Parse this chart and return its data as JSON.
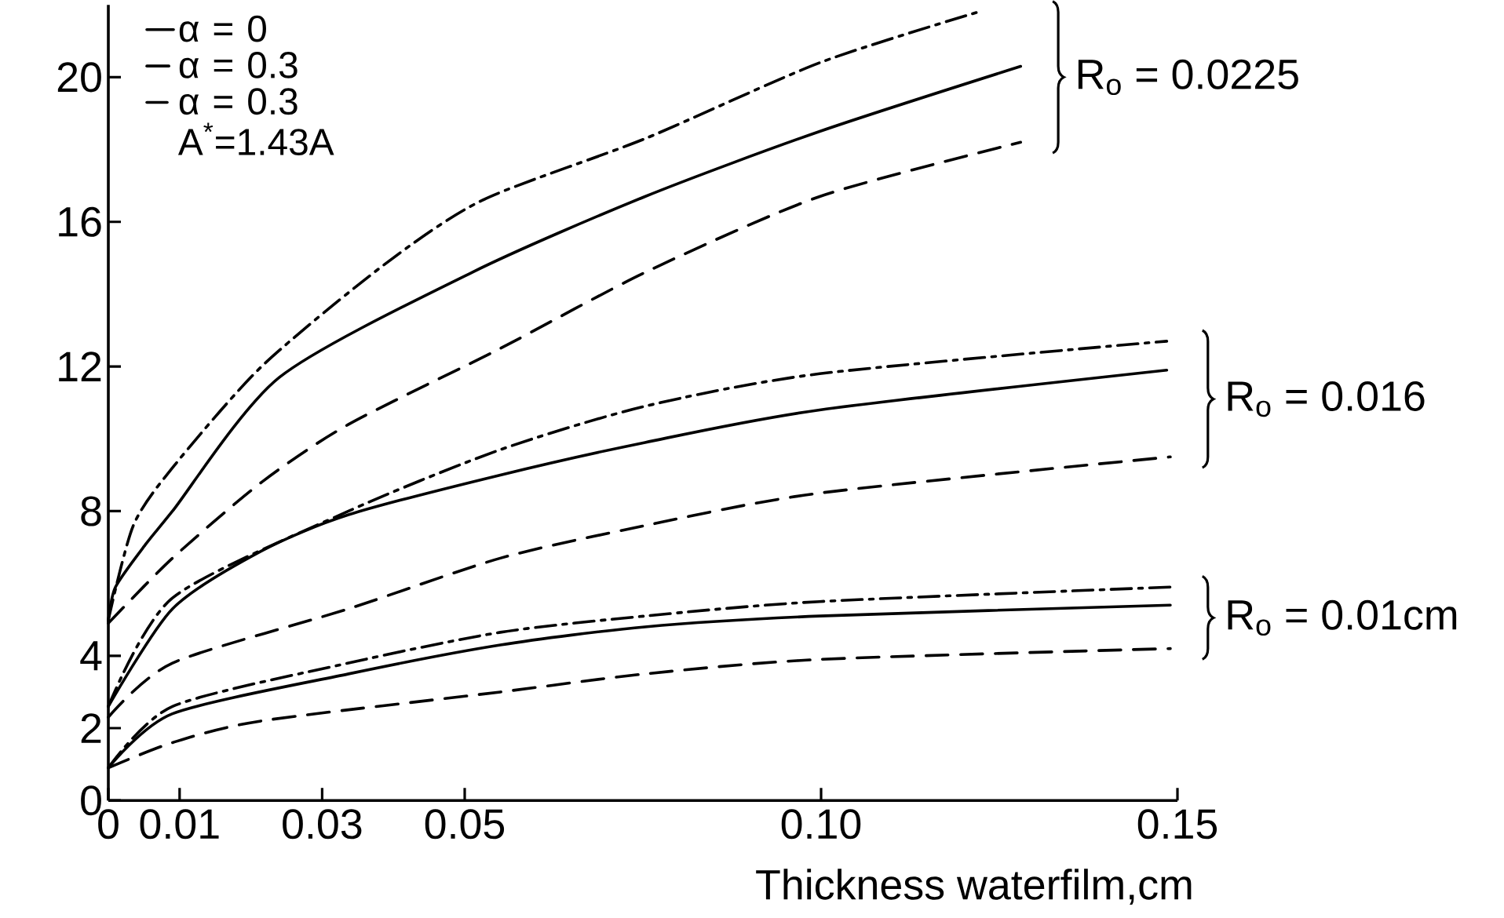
{
  "chart_data": {
    "type": "line",
    "xlabel": "Thickness waterfilm,cm",
    "xlim": [
      0,
      0.15
    ],
    "xticks": [
      0,
      0.01,
      0.03,
      0.05,
      {
        "value": 0.1,
        "label": "0.10"
      },
      0.15
    ],
    "ylim": [
      0,
      22
    ],
    "yticks": [
      0,
      2,
      4,
      8,
      12,
      16,
      20
    ],
    "legend": "top left",
    "grid": false,
    "series": [
      {
        "name": "α = 0",
        "color": "#000000",
        "line_style": "solid",
        "x": [
          0,
          0.001,
          0.0053,
          0.009,
          0.024,
          0.051,
          0.0753,
          0.0998,
          0.128
        ],
        "values": [
          4.96,
          5.9,
          7.1,
          8.0,
          11.7,
          14.6,
          16.7,
          18.5,
          20.3
        ]
      },
      {
        "name": "α = 0.3",
        "color": "#000000",
        "line_style": "dashed",
        "x": [
          0,
          0.009,
          0.0215,
          0.0337,
          0.055,
          0.0753,
          0.0998,
          0.128
        ],
        "values": [
          4.9,
          6.7,
          8.8,
          10.4,
          12.5,
          14.6,
          16.7,
          18.2
        ]
      },
      {
        "name": "α = 0.3 A$^{*}$=1.43A",
        "color": "#000000",
        "line_style": "dashdot",
        "x": [
          0,
          0.0035,
          0.009,
          0.0215,
          0.0386,
          0.0525,
          0.0753,
          0.0998,
          0.122
        ],
        "values": [
          5.0,
          7.6,
          9.2,
          12.0,
          14.8,
          16.6,
          18.3,
          20.4,
          21.8
        ]
      },
      {
        "color": "#000000",
        "line_style": "solid",
        "x": [
          0,
          0.009,
          0.0215,
          0.0337,
          0.055,
          0.0753,
          0.0998,
          0.1485
        ],
        "values": [
          2.6,
          5.3,
          6.9,
          7.9,
          9.0,
          9.9,
          10.8,
          11.9
        ]
      },
      {
        "color": "#000000",
        "line_style": "dashed",
        "x": [
          0,
          0.009,
          0.0337,
          0.055,
          0.0753,
          0.0998,
          0.149
        ],
        "values": [
          2.3,
          3.8,
          5.3,
          6.7,
          7.6,
          8.5,
          9.5
        ]
      },
      {
        "color": "#000000",
        "line_style": "dashdot",
        "x": [
          0,
          0.009,
          0.0337,
          0.055,
          0.0753,
          0.0998,
          0.1485
        ],
        "values": [
          2.6,
          5.6,
          8.0,
          9.7,
          10.9,
          11.8,
          12.7
        ]
      },
      {
        "color": "#000000",
        "line_style": "solid",
        "x": [
          0,
          0.009,
          0.0337,
          0.055,
          0.0753,
          0.0998,
          0.149
        ],
        "values": [
          0.9,
          2.4,
          3.5,
          4.3,
          4.8,
          5.1,
          5.4
        ]
      },
      {
        "color": "#000000",
        "line_style": "dashed",
        "x": [
          0,
          0.009,
          0.0215,
          0.055,
          0.0753,
          0.0998,
          0.149
        ],
        "values": [
          0.9,
          1.6,
          2.2,
          3.0,
          3.5,
          3.9,
          4.2
        ]
      },
      {
        "color": "#000000",
        "line_style": "dashdot",
        "x": [
          0,
          0.009,
          0.0337,
          0.055,
          0.0753,
          0.0998,
          0.149
        ],
        "values": [
          0.9,
          2.6,
          3.8,
          4.65,
          5.1,
          5.5,
          5.9
        ]
      }
    ],
    "annotations": [
      "R$_{o}$ = 0.0225",
      "R$_{o}$ = 0.016",
      "R$_{o}$ = 0.01cm"
    ]
  }
}
